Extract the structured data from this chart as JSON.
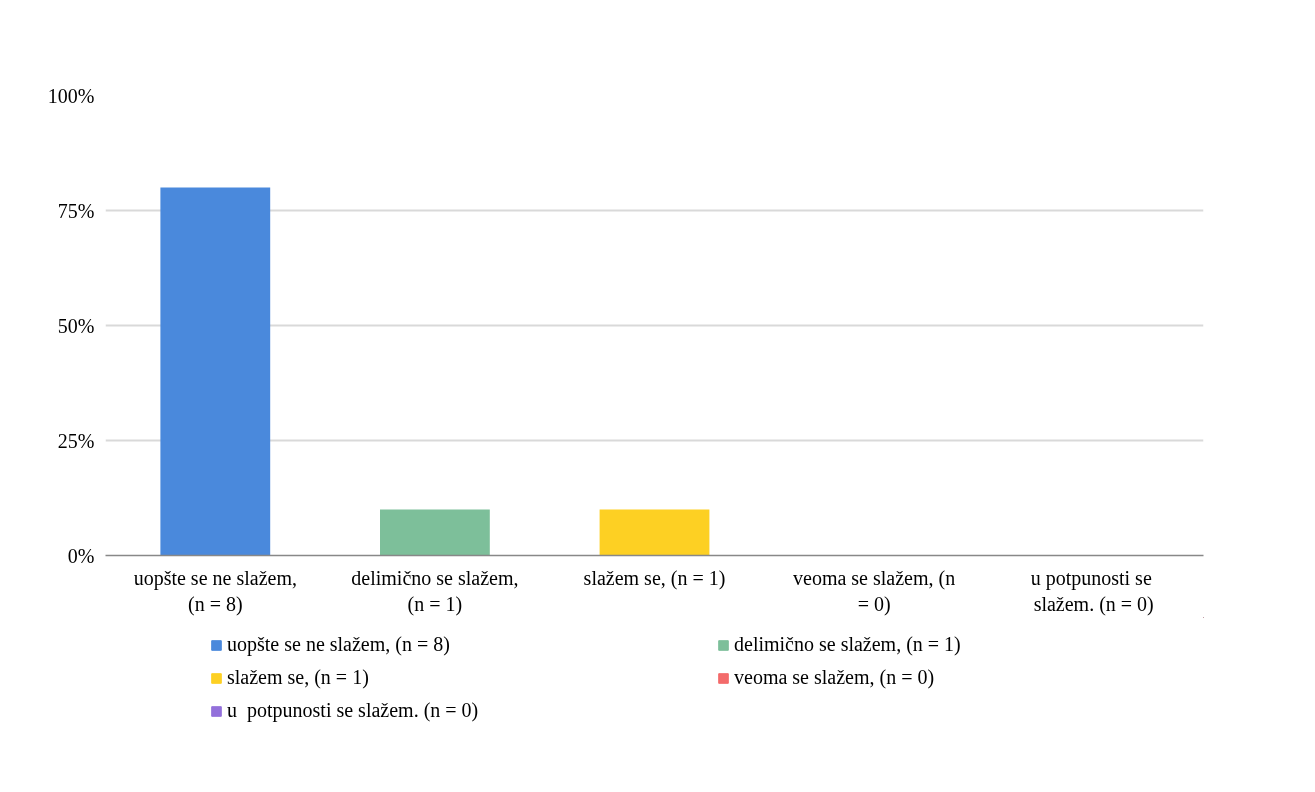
{
  "chart_data": {
    "type": "bar",
    "categories": [
      "uopšte se ne slažem, (n = 8)",
      "delimično se slažem, (n = 1)",
      "slažem se, (n = 1)",
      "veoma se slažem, (n = 0)",
      "u  potpunosti se slažem. (n = 0)"
    ],
    "series": [
      {
        "name": "uopšte se ne slažem, (n = 8)",
        "color": "#4a89dc",
        "values": [
          80,
          null,
          null,
          null,
          null
        ]
      },
      {
        "name": "delimično se slažem, (n = 1)",
        "color": "#7dbf9a",
        "values": [
          null,
          10,
          null,
          null,
          null
        ]
      },
      {
        "name": "slažem se, (n = 1)",
        "color": "#fdd023",
        "values": [
          null,
          null,
          10,
          null,
          null
        ]
      },
      {
        "name": "veoma se slažem, (n = 0)",
        "color": "#f36b6b",
        "values": [
          null,
          null,
          null,
          0,
          null
        ]
      },
      {
        "name": "u  potpunosti se slažem. (n = 0)",
        "color": "#9370db",
        "values": [
          null,
          null,
          null,
          null,
          0
        ]
      }
    ],
    "ylim": [
      0,
      100
    ],
    "yticks": [
      {
        "value": 0,
        "label": "0%"
      },
      {
        "value": 25,
        "label": "25%"
      },
      {
        "value": 50,
        "label": "50%"
      },
      {
        "value": 75,
        "label": "75%"
      },
      {
        "value": 100,
        "label": "100%"
      }
    ],
    "grid": "y",
    "legend": "bottom"
  }
}
